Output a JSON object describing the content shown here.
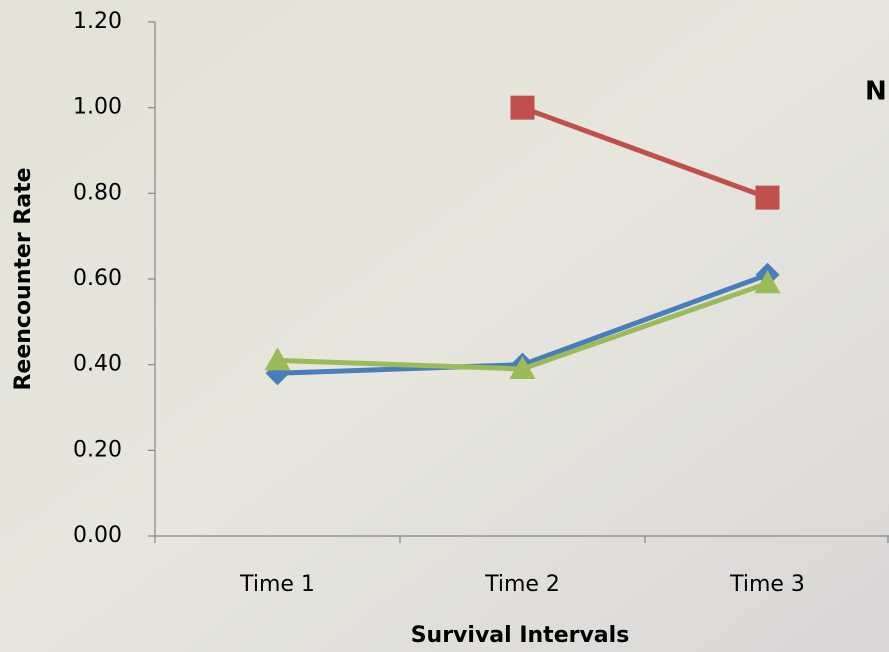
{
  "chart_data": {
    "type": "line",
    "annotation": "N",
    "xlabel": "Survival Intervals",
    "ylabel": "Reencounter Rate",
    "categories": [
      "Time 1",
      "Time 2",
      "Time 3"
    ],
    "series": [
      {
        "color": "#4a7ebb",
        "marker": "diamond",
        "values": [
          0.38,
          0.4,
          0.61
        ]
      },
      {
        "color": "#c0504d",
        "marker": "square",
        "values": [
          null,
          1.0,
          0.79
        ]
      },
      {
        "color": "#9bbb59",
        "marker": "triangle",
        "values": [
          0.41,
          0.39,
          0.59
        ]
      }
    ],
    "ylim": [
      0,
      1.2
    ],
    "yticks": [
      {
        "value": 0,
        "label": "0.00"
      },
      {
        "value": 0.2,
        "label": "0.20"
      },
      {
        "value": 0.4,
        "label": "0.40"
      },
      {
        "value": 0.6,
        "label": "0.60"
      },
      {
        "value": 0.8,
        "label": "0.80"
      },
      {
        "value": 1.0,
        "label": "1.00"
      },
      {
        "value": 1.2,
        "label": "1.20"
      }
    ],
    "grid": false
  }
}
